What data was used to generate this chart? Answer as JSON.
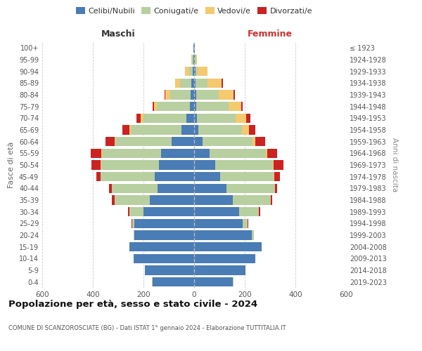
{
  "age_groups": [
    "0-4",
    "5-9",
    "10-14",
    "15-19",
    "20-24",
    "25-29",
    "30-34",
    "35-39",
    "40-44",
    "45-49",
    "50-54",
    "55-59",
    "60-64",
    "65-69",
    "70-74",
    "75-79",
    "80-84",
    "85-89",
    "90-94",
    "95-99",
    "100+"
  ],
  "birth_years": [
    "2019-2023",
    "2014-2018",
    "2009-2013",
    "2004-2008",
    "1999-2003",
    "1994-1998",
    "1989-1993",
    "1984-1988",
    "1979-1983",
    "1974-1978",
    "1969-1973",
    "1964-1968",
    "1959-1963",
    "1954-1958",
    "1949-1953",
    "1944-1948",
    "1939-1943",
    "1934-1938",
    "1929-1933",
    "1924-1928",
    "≤ 1923"
  ],
  "colors": {
    "celibe": "#4a7cb5",
    "coniugato": "#b8cfa0",
    "vedovo": "#f5c96e",
    "divorziato": "#cc2222"
  },
  "males": {
    "celibe": [
      165,
      195,
      240,
      255,
      235,
      235,
      200,
      175,
      145,
      155,
      140,
      130,
      90,
      50,
      30,
      18,
      15,
      10,
      5,
      2,
      2
    ],
    "coniugato": [
      3,
      0,
      0,
      0,
      5,
      10,
      55,
      140,
      180,
      215,
      228,
      235,
      220,
      200,
      170,
      130,
      80,
      45,
      15,
      5,
      0
    ],
    "vedovo": [
      0,
      0,
      0,
      0,
      0,
      0,
      0,
      0,
      0,
      0,
      2,
      2,
      5,
      5,
      10,
      10,
      18,
      20,
      15,
      5,
      0
    ],
    "divorziato": [
      0,
      0,
      0,
      0,
      0,
      3,
      5,
      10,
      10,
      15,
      35,
      40,
      35,
      28,
      18,
      5,
      5,
      0,
      0,
      0,
      0
    ]
  },
  "females": {
    "nubile": [
      152,
      202,
      242,
      268,
      228,
      192,
      178,
      152,
      128,
      102,
      82,
      62,
      32,
      18,
      12,
      8,
      8,
      5,
      5,
      2,
      2
    ],
    "coniugata": [
      3,
      0,
      0,
      0,
      8,
      18,
      78,
      152,
      192,
      212,
      228,
      222,
      198,
      172,
      152,
      128,
      88,
      48,
      10,
      5,
      0
    ],
    "vedova": [
      0,
      0,
      0,
      0,
      0,
      0,
      0,
      0,
      0,
      3,
      5,
      5,
      12,
      28,
      42,
      50,
      60,
      55,
      38,
      5,
      0
    ],
    "divorziata": [
      0,
      0,
      0,
      0,
      0,
      3,
      5,
      5,
      8,
      22,
      38,
      38,
      38,
      25,
      15,
      5,
      5,
      5,
      0,
      0,
      0
    ]
  },
  "xlim": 600,
  "title": "Popolazione per età, sesso e stato civile - 2024",
  "subtitle": "COMUNE DI SCANZOROSCIATE (BG) - Dati ISTAT 1° gennaio 2024 - Elaborazione TUTTITALIA.IT",
  "ylabel_left": "Fasce di età",
  "ylabel_right": "Anni di nascita",
  "xlabel_left": "Maschi",
  "xlabel_right": "Femmine"
}
